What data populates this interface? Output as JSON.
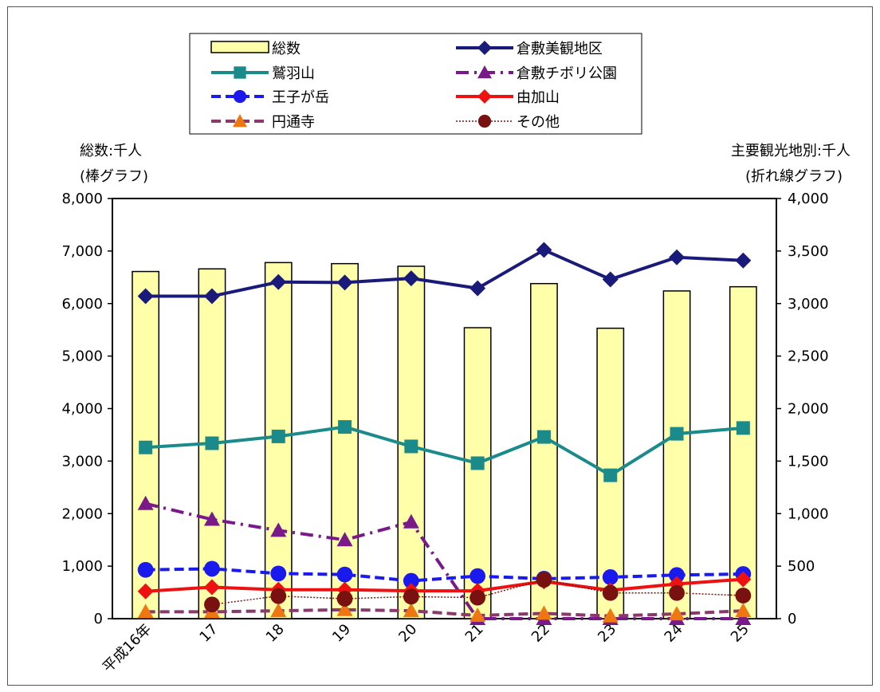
{
  "chart_data": {
    "type": "bar",
    "categories": [
      "平成16年",
      "17",
      "18",
      "19",
      "20",
      "21",
      "22",
      "23",
      "24",
      "25"
    ],
    "left_axis": {
      "label_line1": "総数:千人",
      "label_line2": "(棒グラフ)",
      "ylim": [
        0,
        8000
      ],
      "ticks": [
        "0",
        "1,000",
        "2,000",
        "3,000",
        "4,000",
        "5,000",
        "6,000",
        "7,000",
        "8,000"
      ]
    },
    "right_axis": {
      "label_line1": "主要観光地別:千人",
      "label_line2": "(折れ線グラフ)",
      "ylim": [
        0,
        4000
      ],
      "ticks": [
        "0",
        "500",
        "1,000",
        "1,500",
        "2,000",
        "2,500",
        "3,000",
        "3,500",
        "4,000"
      ]
    },
    "bars": {
      "name": "総数",
      "color": "#FFFFAA",
      "values": [
        6610,
        6660,
        6780,
        6760,
        6710,
        5540,
        6380,
        5530,
        6240,
        6320
      ]
    },
    "series": [
      {
        "name": "倉敷美観地区",
        "color": "#1A1A7A",
        "marker": "diamond",
        "dash": "solid",
        "values": [
          3070,
          3070,
          3205,
          3200,
          3240,
          3145,
          3510,
          3230,
          3440,
          3410
        ]
      },
      {
        "name": "鷲羽山",
        "color": "#1A8A8A",
        "marker": "square",
        "dash": "solid",
        "values": [
          1630,
          1670,
          1735,
          1825,
          1640,
          1480,
          1730,
          1365,
          1760,
          1815
        ]
      },
      {
        "name": "倉敷チボリ公園",
        "color": "#7A1A8A",
        "marker": "triangle",
        "dash": "dashdot",
        "values": [
          1095,
          945,
          840,
          750,
          920,
          0,
          0,
          0,
          0,
          0
        ]
      },
      {
        "name": "王子が岳",
        "color": "#1A1AEE",
        "marker": "circle",
        "dash": "dash",
        "values": [
          465,
          475,
          430,
          420,
          360,
          405,
          380,
          395,
          415,
          425
        ]
      },
      {
        "name": "由加山",
        "color": "#EE1111",
        "marker": "diamond",
        "dash": "solid",
        "values": [
          260,
          300,
          275,
          275,
          265,
          265,
          355,
          270,
          330,
          375
        ]
      },
      {
        "name": "円通寺",
        "color": "#8A3A6A",
        "marker": "triangle",
        "dash": "dash",
        "markerColor": "#EE7711",
        "values": [
          65,
          65,
          75,
          85,
          75,
          30,
          50,
          25,
          45,
          75
        ]
      },
      {
        "name": "その他",
        "color": "#7A1111",
        "marker": "circle",
        "dash": "dot",
        "values": [
          null,
          135,
          215,
          190,
          210,
          200,
          370,
          245,
          245,
          220
        ]
      }
    ],
    "grid": false,
    "legend_position": "top"
  }
}
